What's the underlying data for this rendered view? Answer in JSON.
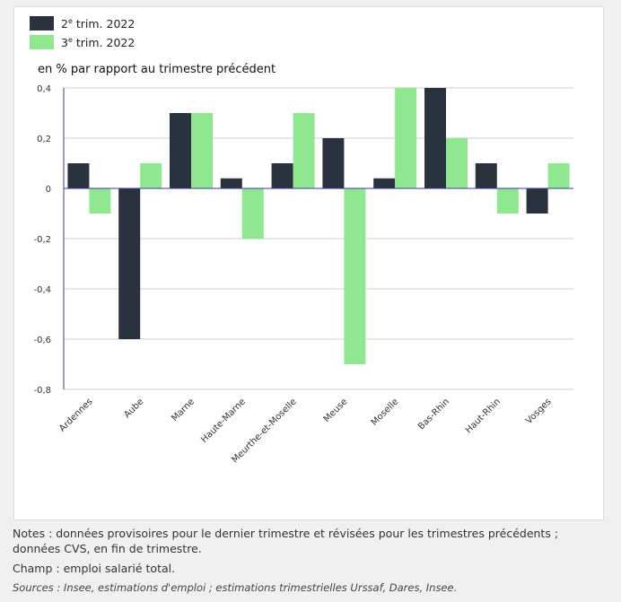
{
  "legend": {
    "s1_prefix": "2",
    "s1_sup": "e",
    "s1_rest": " trim. 2022",
    "s2_prefix": "3",
    "s2_sup": "e",
    "s2_rest": " trim. 2022"
  },
  "unit_label": "en % par rapport au trimestre précédent",
  "notes": {
    "line1": "Notes : données provisoires pour le dernier trimestre et révisées pour les trimestres précédents ; données CVS, en fin de trimestre.",
    "line2": "Champ : emploi salarié total.",
    "line3": "Sources : Insee, estimations d'emploi ; estimations trimestrielles Urssaf, Dares, Insee."
  },
  "colors": {
    "series1": "#2a323d",
    "series2": "#8fe88f",
    "axis": "#3b3b9a",
    "grid": "#cccccc"
  },
  "chart_data": {
    "type": "bar",
    "categories": [
      "Ardennes",
      "Aube",
      "Marne",
      "Haute-Marne",
      "Meurthe-et-Moselle",
      "Meuse",
      "Moselle",
      "Bas-Rhin",
      "Haut-Rhin",
      "Vosges"
    ],
    "series": [
      {
        "name": "2e trim. 2022",
        "values": [
          0.1,
          -0.6,
          0.3,
          0.04,
          0.1,
          0.2,
          0.04,
          0.4,
          0.1,
          -0.1
        ]
      },
      {
        "name": "3e trim. 2022",
        "values": [
          -0.1,
          0.1,
          0.3,
          -0.2,
          0.3,
          -0.7,
          0.4,
          0.2,
          -0.1,
          0.1
        ]
      }
    ],
    "ylabel": "en % par rapport au trimestre précédent",
    "ylim": [
      -0.8,
      0.4
    ],
    "yticks": [
      "0,4",
      "0,2",
      "0",
      "-0,2",
      "-0,4",
      "-0,6",
      "-0,8"
    ],
    "grid": true,
    "legend_position": "top-left"
  }
}
